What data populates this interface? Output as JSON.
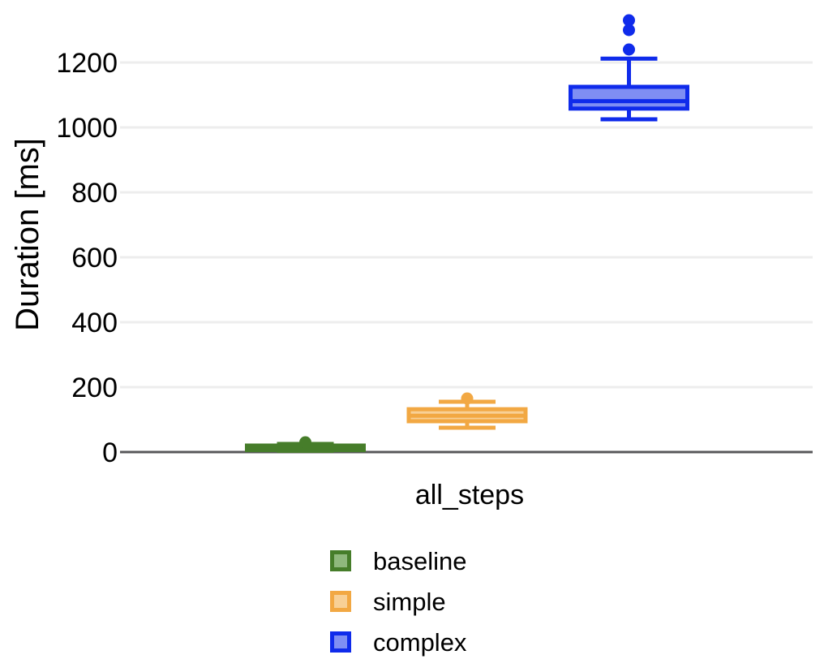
{
  "chart_data": {
    "type": "boxplot",
    "title": "",
    "ylabel": "Duration [ms]",
    "xlabel": "",
    "categories": [
      "all_steps"
    ],
    "yticks": [
      0,
      200,
      400,
      600,
      800,
      1000,
      1200
    ],
    "ylim": [
      0,
      1390
    ],
    "grid": "horizontal-only",
    "legend_position": "bottom-center",
    "background": "#ffffff",
    "grid_color": "#ededed",
    "zero_line_color": "#58585a",
    "text_color": "#000000",
    "series": [
      {
        "name": "baseline",
        "fill": "#8fb87d",
        "stroke": "#467d2a",
        "stats": {
          "whisker_low": 4,
          "q1": 6,
          "median": 13,
          "q3": 20,
          "whisker_high": 25,
          "outliers": [
            30
          ]
        }
      },
      {
        "name": "simple",
        "fill": "#f8d096",
        "stroke": "#f2a843",
        "stats": {
          "whisker_low": 75,
          "q1": 95,
          "median": 112,
          "q3": 132,
          "whisker_high": 155,
          "outliers": [
            165
          ]
        }
      },
      {
        "name": "complex",
        "fill": "#7f8ef3",
        "stroke": "#0f2beb",
        "stats": {
          "whisker_low": 1025,
          "q1": 1058,
          "median": 1081,
          "q3": 1125,
          "whisker_high": 1212,
          "outliers": [
            1240,
            1300,
            1330
          ]
        }
      }
    ]
  }
}
